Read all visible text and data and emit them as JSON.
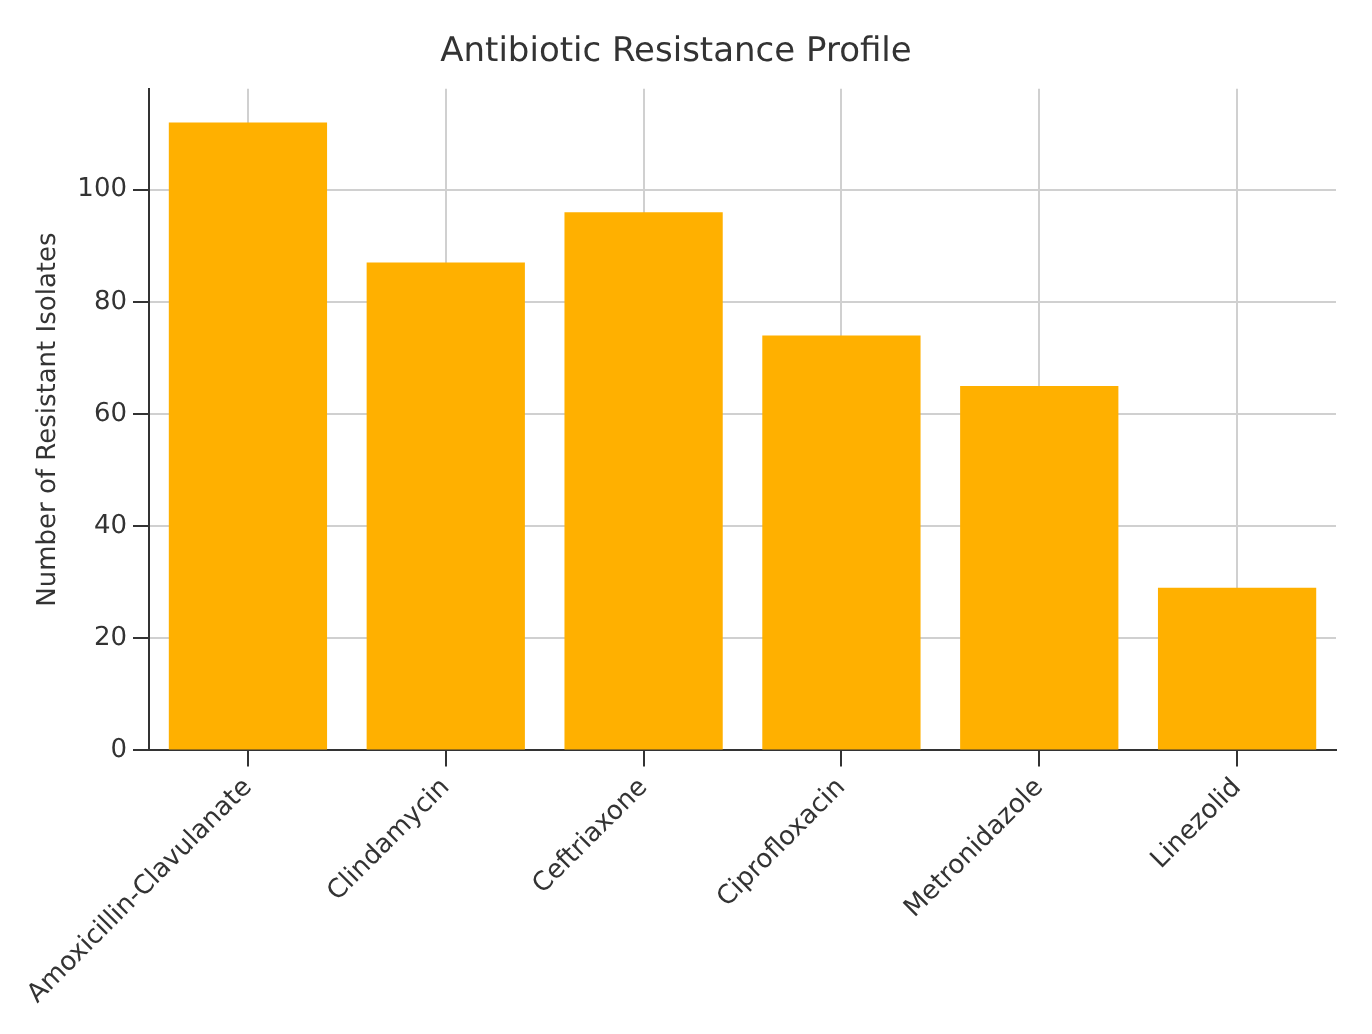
{
  "chart_data": {
    "type": "bar",
    "title": "Antibiotic Resistance Profile",
    "ylabel": "Number of Resistant Isolates",
    "categories": [
      "Amoxicillin-Clavulanate",
      "Clindamycin",
      "Ceftriaxone",
      "Ciprofloxacin",
      "Metronidazole",
      "Linezolid"
    ],
    "values": [
      112,
      87,
      96,
      74,
      65,
      29
    ],
    "color": "#ffb000",
    "ylim": [
      0,
      118
    ],
    "yticks": [
      0,
      20,
      40,
      60,
      80,
      100
    ],
    "grid": true
  }
}
